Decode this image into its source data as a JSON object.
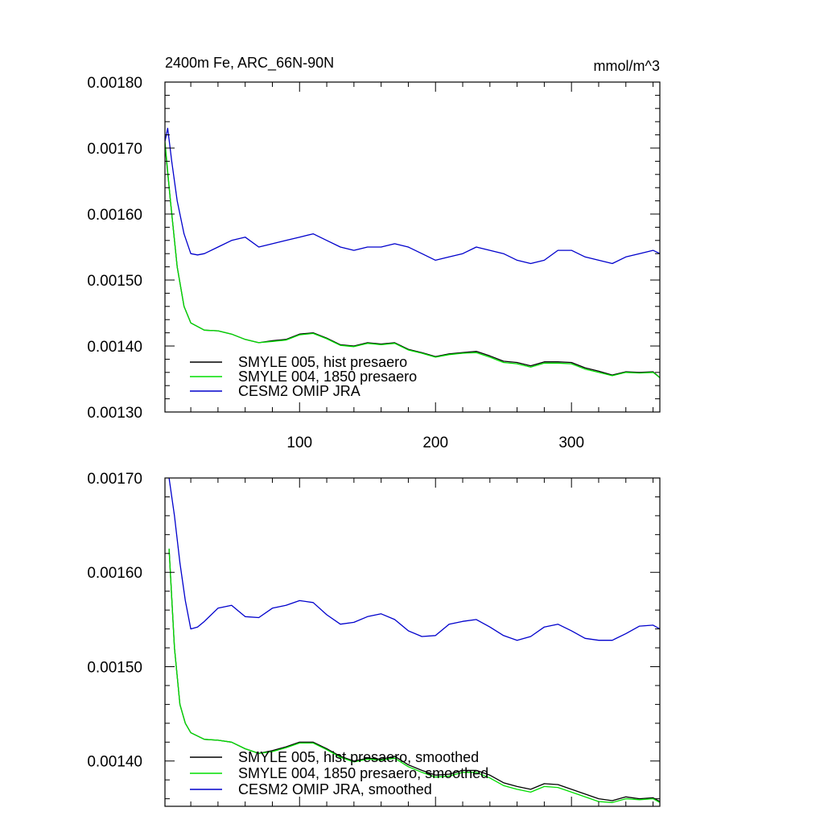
{
  "chart_data": [
    {
      "type": "line",
      "title": "2400m Fe, ARC_66N-90N",
      "units": "mmol/m^3",
      "xlim": [
        1,
        365
      ],
      "ylim": [
        0.0013,
        0.0018
      ],
      "xticks": [
        100,
        200,
        300
      ],
      "xtick_labels": [
        "100",
        "200",
        "300"
      ],
      "yticks": [
        0.0013,
        0.0014,
        0.0015,
        0.0016,
        0.0017,
        0.0018
      ],
      "ytick_labels": [
        "0.00130",
        "0.00140",
        "0.00150",
        "0.00160",
        "0.00170",
        "0.00180"
      ],
      "legend_position": "bottom-left",
      "series": [
        {
          "name": "SMYLE 005, hist presaero",
          "color": "#000000",
          "x": [
            1,
            5,
            10,
            15,
            20,
            30,
            40,
            50,
            60,
            70,
            80,
            90,
            100,
            110,
            120,
            130,
            140,
            150,
            160,
            170,
            180,
            190,
            200,
            210,
            220,
            230,
            240,
            250,
            260,
            270,
            280,
            290,
            300,
            310,
            320,
            330,
            340,
            350,
            360,
            365
          ],
          "values": [
            0.001705,
            0.00162,
            0.00152,
            0.00146,
            0.001435,
            0.001424,
            0.001423,
            0.001418,
            0.00141,
            0.001405,
            0.001408,
            0.00141,
            0.001418,
            0.00142,
            0.001412,
            0.001402,
            0.0014,
            0.001405,
            0.001403,
            0.001405,
            0.001395,
            0.00139,
            0.001384,
            0.001388,
            0.00139,
            0.001392,
            0.001385,
            0.001377,
            0.001375,
            0.00137,
            0.001376,
            0.001376,
            0.001375,
            0.001367,
            0.001362,
            0.001356,
            0.001361,
            0.00136,
            0.001361,
            0.001352
          ]
        },
        {
          "name": "SMYLE 004, 1850 presaero",
          "color": "#00dd00",
          "x": [
            1,
            5,
            10,
            15,
            20,
            30,
            40,
            50,
            60,
            70,
            80,
            90,
            100,
            110,
            120,
            130,
            140,
            150,
            160,
            170,
            180,
            190,
            200,
            210,
            220,
            230,
            240,
            250,
            260,
            270,
            280,
            290,
            300,
            310,
            320,
            330,
            340,
            350,
            360,
            365
          ],
          "values": [
            0.00171,
            0.00162,
            0.00152,
            0.00146,
            0.001435,
            0.001424,
            0.001423,
            0.001418,
            0.00141,
            0.001405,
            0.001407,
            0.001409,
            0.001417,
            0.001419,
            0.001411,
            0.001401,
            0.001399,
            0.001404,
            0.001402,
            0.001404,
            0.001394,
            0.001389,
            0.001383,
            0.001387,
            0.001389,
            0.00139,
            0.001383,
            0.001375,
            0.001373,
            0.001368,
            0.001374,
            0.001374,
            0.001373,
            0.001365,
            0.00136,
            0.001355,
            0.00136,
            0.001359,
            0.00136,
            0.001352
          ]
        },
        {
          "name": "CESM2 OMIP JRA",
          "color": "#0000cc",
          "x": [
            1,
            3,
            6,
            10,
            15,
            20,
            25,
            30,
            40,
            50,
            60,
            70,
            80,
            90,
            100,
            110,
            120,
            130,
            140,
            150,
            160,
            170,
            180,
            190,
            200,
            210,
            220,
            230,
            240,
            250,
            260,
            270,
            280,
            290,
            300,
            310,
            320,
            330,
            340,
            350,
            360,
            365
          ],
          "values": [
            0.00171,
            0.00173,
            0.00168,
            0.00162,
            0.00157,
            0.00154,
            0.001538,
            0.00154,
            0.00155,
            0.00156,
            0.001565,
            0.00155,
            0.001555,
            0.00156,
            0.001565,
            0.00157,
            0.00156,
            0.00155,
            0.001545,
            0.00155,
            0.00155,
            0.001555,
            0.00155,
            0.00154,
            0.00153,
            0.001535,
            0.00154,
            0.00155,
            0.001545,
            0.00154,
            0.00153,
            0.001525,
            0.00153,
            0.001545,
            0.001545,
            0.001535,
            0.00153,
            0.001525,
            0.001535,
            0.00154,
            0.001545,
            0.00154
          ]
        }
      ]
    },
    {
      "type": "line",
      "title": "",
      "units": "",
      "xlim": [
        1,
        365
      ],
      "ylim": [
        0.001352,
        0.0017
      ],
      "xticks": [
        100,
        200,
        300
      ],
      "xtick_labels": [],
      "yticks": [
        0.0014,
        0.0015,
        0.0016,
        0.0017
      ],
      "ytick_labels": [
        "0.00140",
        "0.00150",
        "0.00160",
        "0.00170"
      ],
      "legend_position": "bottom-left",
      "series": [
        {
          "name": "SMYLE 005, hist presaero, smoothed",
          "color": "#000000",
          "x": [
            4,
            8,
            12,
            16,
            20,
            30,
            40,
            50,
            60,
            70,
            80,
            90,
            100,
            110,
            120,
            130,
            140,
            150,
            160,
            170,
            180,
            190,
            200,
            210,
            220,
            230,
            240,
            250,
            260,
            270,
            280,
            290,
            300,
            310,
            320,
            330,
            340,
            350,
            360,
            365
          ],
          "values": [
            0.001625,
            0.00152,
            0.00146,
            0.00144,
            0.00143,
            0.001423,
            0.001422,
            0.00142,
            0.001413,
            0.001408,
            0.001411,
            0.001415,
            0.00142,
            0.00142,
            0.001413,
            0.001405,
            0.0014,
            0.001403,
            0.001402,
            0.001405,
            0.001396,
            0.00139,
            0.001385,
            0.001386,
            0.00139,
            0.00139,
            0.001385,
            0.001377,
            0.001373,
            0.00137,
            0.001376,
            0.001375,
            0.00137,
            0.001365,
            0.00136,
            0.001358,
            0.001362,
            0.00136,
            0.001361,
            0.001357
          ]
        },
        {
          "name": "SMYLE 004, 1850 presaero, smoothed",
          "color": "#00dd00",
          "x": [
            4,
            8,
            12,
            16,
            20,
            30,
            40,
            50,
            60,
            70,
            80,
            90,
            100,
            110,
            120,
            130,
            140,
            150,
            160,
            170,
            180,
            190,
            200,
            210,
            220,
            230,
            240,
            250,
            260,
            270,
            280,
            290,
            300,
            310,
            320,
            330,
            340,
            350,
            360,
            365
          ],
          "values": [
            0.001625,
            0.00152,
            0.00146,
            0.00144,
            0.00143,
            0.001423,
            0.001422,
            0.00142,
            0.001413,
            0.001408,
            0.00141,
            0.001414,
            0.001419,
            0.001419,
            0.001412,
            0.001404,
            0.001399,
            0.001402,
            0.001401,
            0.001403,
            0.001394,
            0.001388,
            0.001383,
            0.001384,
            0.001388,
            0.001388,
            0.001382,
            0.001374,
            0.00137,
            0.001367,
            0.001373,
            0.001372,
            0.001367,
            0.001362,
            0.001357,
            0.001356,
            0.00136,
            0.001359,
            0.00136,
            0.001356
          ]
        },
        {
          "name": "CESM2 OMIP JRA, smoothed",
          "color": "#0000cc",
          "x": [
            4,
            8,
            12,
            16,
            20,
            25,
            30,
            40,
            50,
            60,
            70,
            80,
            90,
            100,
            110,
            120,
            130,
            140,
            150,
            160,
            170,
            180,
            190,
            200,
            210,
            220,
            230,
            240,
            250,
            260,
            270,
            280,
            290,
            300,
            310,
            320,
            330,
            340,
            350,
            360,
            365
          ],
          "values": [
            0.0017,
            0.00166,
            0.00161,
            0.00157,
            0.00154,
            0.001542,
            0.001548,
            0.001562,
            0.001565,
            0.001553,
            0.001552,
            0.001562,
            0.001565,
            0.00157,
            0.001568,
            0.001555,
            0.001545,
            0.001547,
            0.001553,
            0.001556,
            0.00155,
            0.001538,
            0.001532,
            0.001533,
            0.001545,
            0.001548,
            0.00155,
            0.001542,
            0.001533,
            0.001528,
            0.001532,
            0.001542,
            0.001545,
            0.001538,
            0.00153,
            0.001528,
            0.001528,
            0.001535,
            0.001543,
            0.001544,
            0.00154
          ]
        }
      ]
    }
  ]
}
